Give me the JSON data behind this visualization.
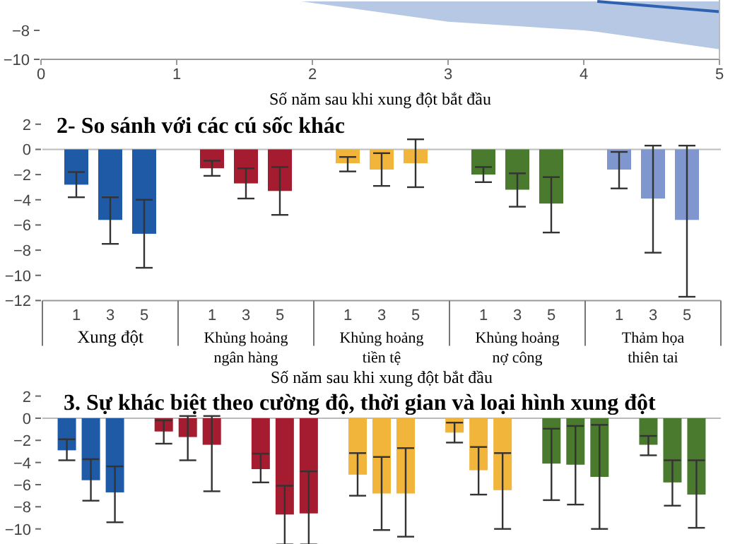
{
  "chart_data": [
    {
      "type": "line",
      "xlabel": "Số năm sau khi xung đột bắt đầu",
      "xlim": [
        0,
        5
      ],
      "xticks": [
        0,
        1,
        2,
        3,
        4,
        5
      ],
      "ylim": [
        -10,
        -5.9
      ],
      "yticks": [
        -10,
        -8
      ],
      "grid": false,
      "series": [
        {
          "color": "#2e62b0",
          "x": [
            1.92,
            3,
            4,
            4.1,
            5
          ],
          "values": [
            null,
            null,
            null,
            -6,
            -6.7
          ],
          "lower": [
            -6,
            -7.4,
            -8,
            -8.1,
            -9.3
          ],
          "upper": [
            -6,
            -6,
            -6,
            -6,
            -6
          ]
        }
      ]
    },
    {
      "type": "bar",
      "title": "2- So sánh với các cú sốc khác",
      "xlabel": "Số năm sau khi xung đột bắt đầu",
      "ylim": [
        -12,
        2
      ],
      "yticks": [
        -12,
        -10,
        -8,
        -6,
        -4,
        -2,
        0,
        2
      ],
      "grid": false,
      "categories": [
        "1",
        "3",
        "5",
        "1",
        "3",
        "5",
        "1",
        "3",
        "5",
        "1",
        "3",
        "5",
        "1",
        "3",
        "5"
      ],
      "values": [
        -2.8,
        -5.6,
        -6.7,
        -1.5,
        -2.7,
        -3.3,
        -1.1,
        -1.6,
        -1.1,
        -2,
        -3.2,
        -4.3,
        -1.6,
        -3.9,
        -5.6
      ],
      "colors": [
        "#1f5aa6",
        "#1f5aa6",
        "#1f5aa6",
        "#a51c30",
        "#a51c30",
        "#a51c30",
        "#f2b53c",
        "#f2b53c",
        "#f2b53c",
        "#4a7a2e",
        "#4a7a2e",
        "#4a7a2e",
        "#7f96cf",
        "#7f96cf",
        "#7f96cf"
      ],
      "errors": [
        [
          -3.8,
          -1.8
        ],
        [
          -7.5,
          -3.8
        ],
        [
          -9.4,
          -4
        ],
        [
          -2.1,
          -0.9
        ],
        [
          -3.9,
          -1.5
        ],
        [
          -5.2,
          -1.4
        ],
        [
          -1.75,
          -0.6
        ],
        [
          -2.9,
          -0.3
        ],
        [
          -3,
          0.8
        ],
        [
          -2.6,
          -1.4
        ],
        [
          -4.55,
          -1.9
        ],
        [
          -6.6,
          -2.2
        ],
        [
          -3.1,
          -0.2
        ],
        [
          -8.2,
          0.3
        ],
        [
          -11.7,
          0.3
        ]
      ],
      "ref_lines": [
        {
          "axis": "y",
          "value": 0,
          "color": "#bbbbbb"
        }
      ],
      "annotations": [
        "Xung đột",
        "Khủng hoảng ngân hàng",
        "Khủng hoảng tiền tệ",
        "Khủng hoảng nợ công",
        "Thảm họa thiên tai"
      ]
    },
    {
      "type": "bar",
      "title": "3. Sự khác biệt theo cường độ, thời gian và loại hình xung đột",
      "ylim": [
        -11.4,
        2
      ],
      "yticks": [
        -10,
        -8,
        -6,
        -4,
        -2,
        0,
        2
      ],
      "grid": false,
      "categories": [
        null,
        null,
        null,
        null,
        null,
        null,
        null,
        null,
        null,
        null,
        null,
        null,
        null,
        null,
        null,
        null,
        null,
        null,
        null,
        null,
        null
      ],
      "values": [
        -2.9,
        -5.6,
        -6.7,
        -1.2,
        -1.7,
        -2.4,
        -4.6,
        -8.7,
        -8.6,
        -5.1,
        -6.8,
        -6.8,
        -1.3,
        -4.7,
        -6.5,
        -4.1,
        -4.2,
        -5.3,
        -2.4,
        -5.8,
        -6.9
      ],
      "colors": [
        "#1f5aa6",
        "#1f5aa6",
        "#1f5aa6",
        "#a51c30",
        "#a51c30",
        "#a51c30",
        "#a51c30",
        "#a51c30",
        "#a51c30",
        "#f2b53c",
        "#f2b53c",
        "#f2b53c",
        "#f2b53c",
        "#f2b53c",
        "#f2b53c",
        "#4a7a2e",
        "#4a7a2e",
        "#4a7a2e",
        "#4a7a2e",
        "#4a7a2e",
        "#4a7a2e"
      ],
      "errors": [
        [
          -3.8,
          -1.9
        ],
        [
          -7.45,
          -3.7
        ],
        [
          -9.4,
          -4.35
        ],
        [
          -2.3,
          -0.2
        ],
        [
          -3.8,
          0.2
        ],
        [
          -6.6,
          0.2
        ],
        [
          -5.8,
          -3.2
        ],
        [
          -11.4,
          -6.1
        ],
        [
          -11.4,
          -4.8
        ],
        [
          -7,
          -3.15
        ],
        [
          -10.1,
          -3.5
        ],
        [
          -10.7,
          -2.7
        ],
        [
          -2.2,
          -0.4
        ],
        [
          -6.9,
          -2.6
        ],
        [
          -10,
          -3.15
        ],
        [
          -7.4,
          -0.95
        ],
        [
          -7.8,
          -0.7
        ],
        [
          -10,
          -0.6
        ],
        [
          -3.35,
          -1.6
        ],
        [
          -7.9,
          -3.8
        ],
        [
          -9.9,
          -3.8
        ]
      ],
      "ref_lines": [
        {
          "axis": "y",
          "value": 0,
          "color": "#bbbbbb"
        }
      ]
    }
  ]
}
